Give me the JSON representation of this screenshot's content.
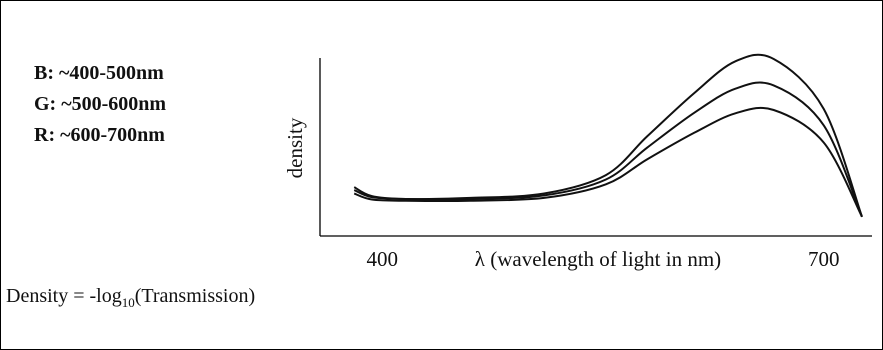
{
  "legend_text": {
    "b": "B: ~400-500nm",
    "g": "G: ~500-600nm",
    "r": "R: ~600-700nm"
  },
  "formula": {
    "prefix": "Density = -log",
    "subscript": "10",
    "suffix": "(Transmission)"
  },
  "chart_data": {
    "type": "line",
    "xlabel": "λ (wavelength of light in nm)",
    "ylabel": "density",
    "x_ticks": [
      400,
      700
    ],
    "xlim": [
      370,
      726
    ],
    "ylim": [
      0,
      1
    ],
    "grid": false,
    "y_tick_labels": false,
    "series": [
      {
        "x": [
          381,
          393,
          416,
          460,
          510,
          552,
          580,
          612,
          640,
          666,
          700,
          726
        ],
        "values": [
          0.214,
          0.159,
          0.141,
          0.148,
          0.175,
          0.288,
          0.525,
          0.791,
          0.986,
          1.0,
          0.694,
          0.032
        ]
      },
      {
        "x": [
          381,
          393,
          416,
          460,
          510,
          552,
          580,
          612,
          640,
          666,
          700,
          726
        ],
        "values": [
          0.196,
          0.152,
          0.141,
          0.141,
          0.163,
          0.261,
          0.456,
          0.67,
          0.818,
          0.838,
          0.593,
          0.032
        ]
      },
      {
        "x": [
          381,
          393,
          416,
          460,
          510,
          552,
          580,
          612,
          640,
          666,
          700,
          726
        ],
        "values": [
          0.175,
          0.138,
          0.13,
          0.13,
          0.148,
          0.231,
          0.384,
          0.547,
          0.667,
          0.687,
          0.488,
          0.032
        ]
      }
    ]
  }
}
